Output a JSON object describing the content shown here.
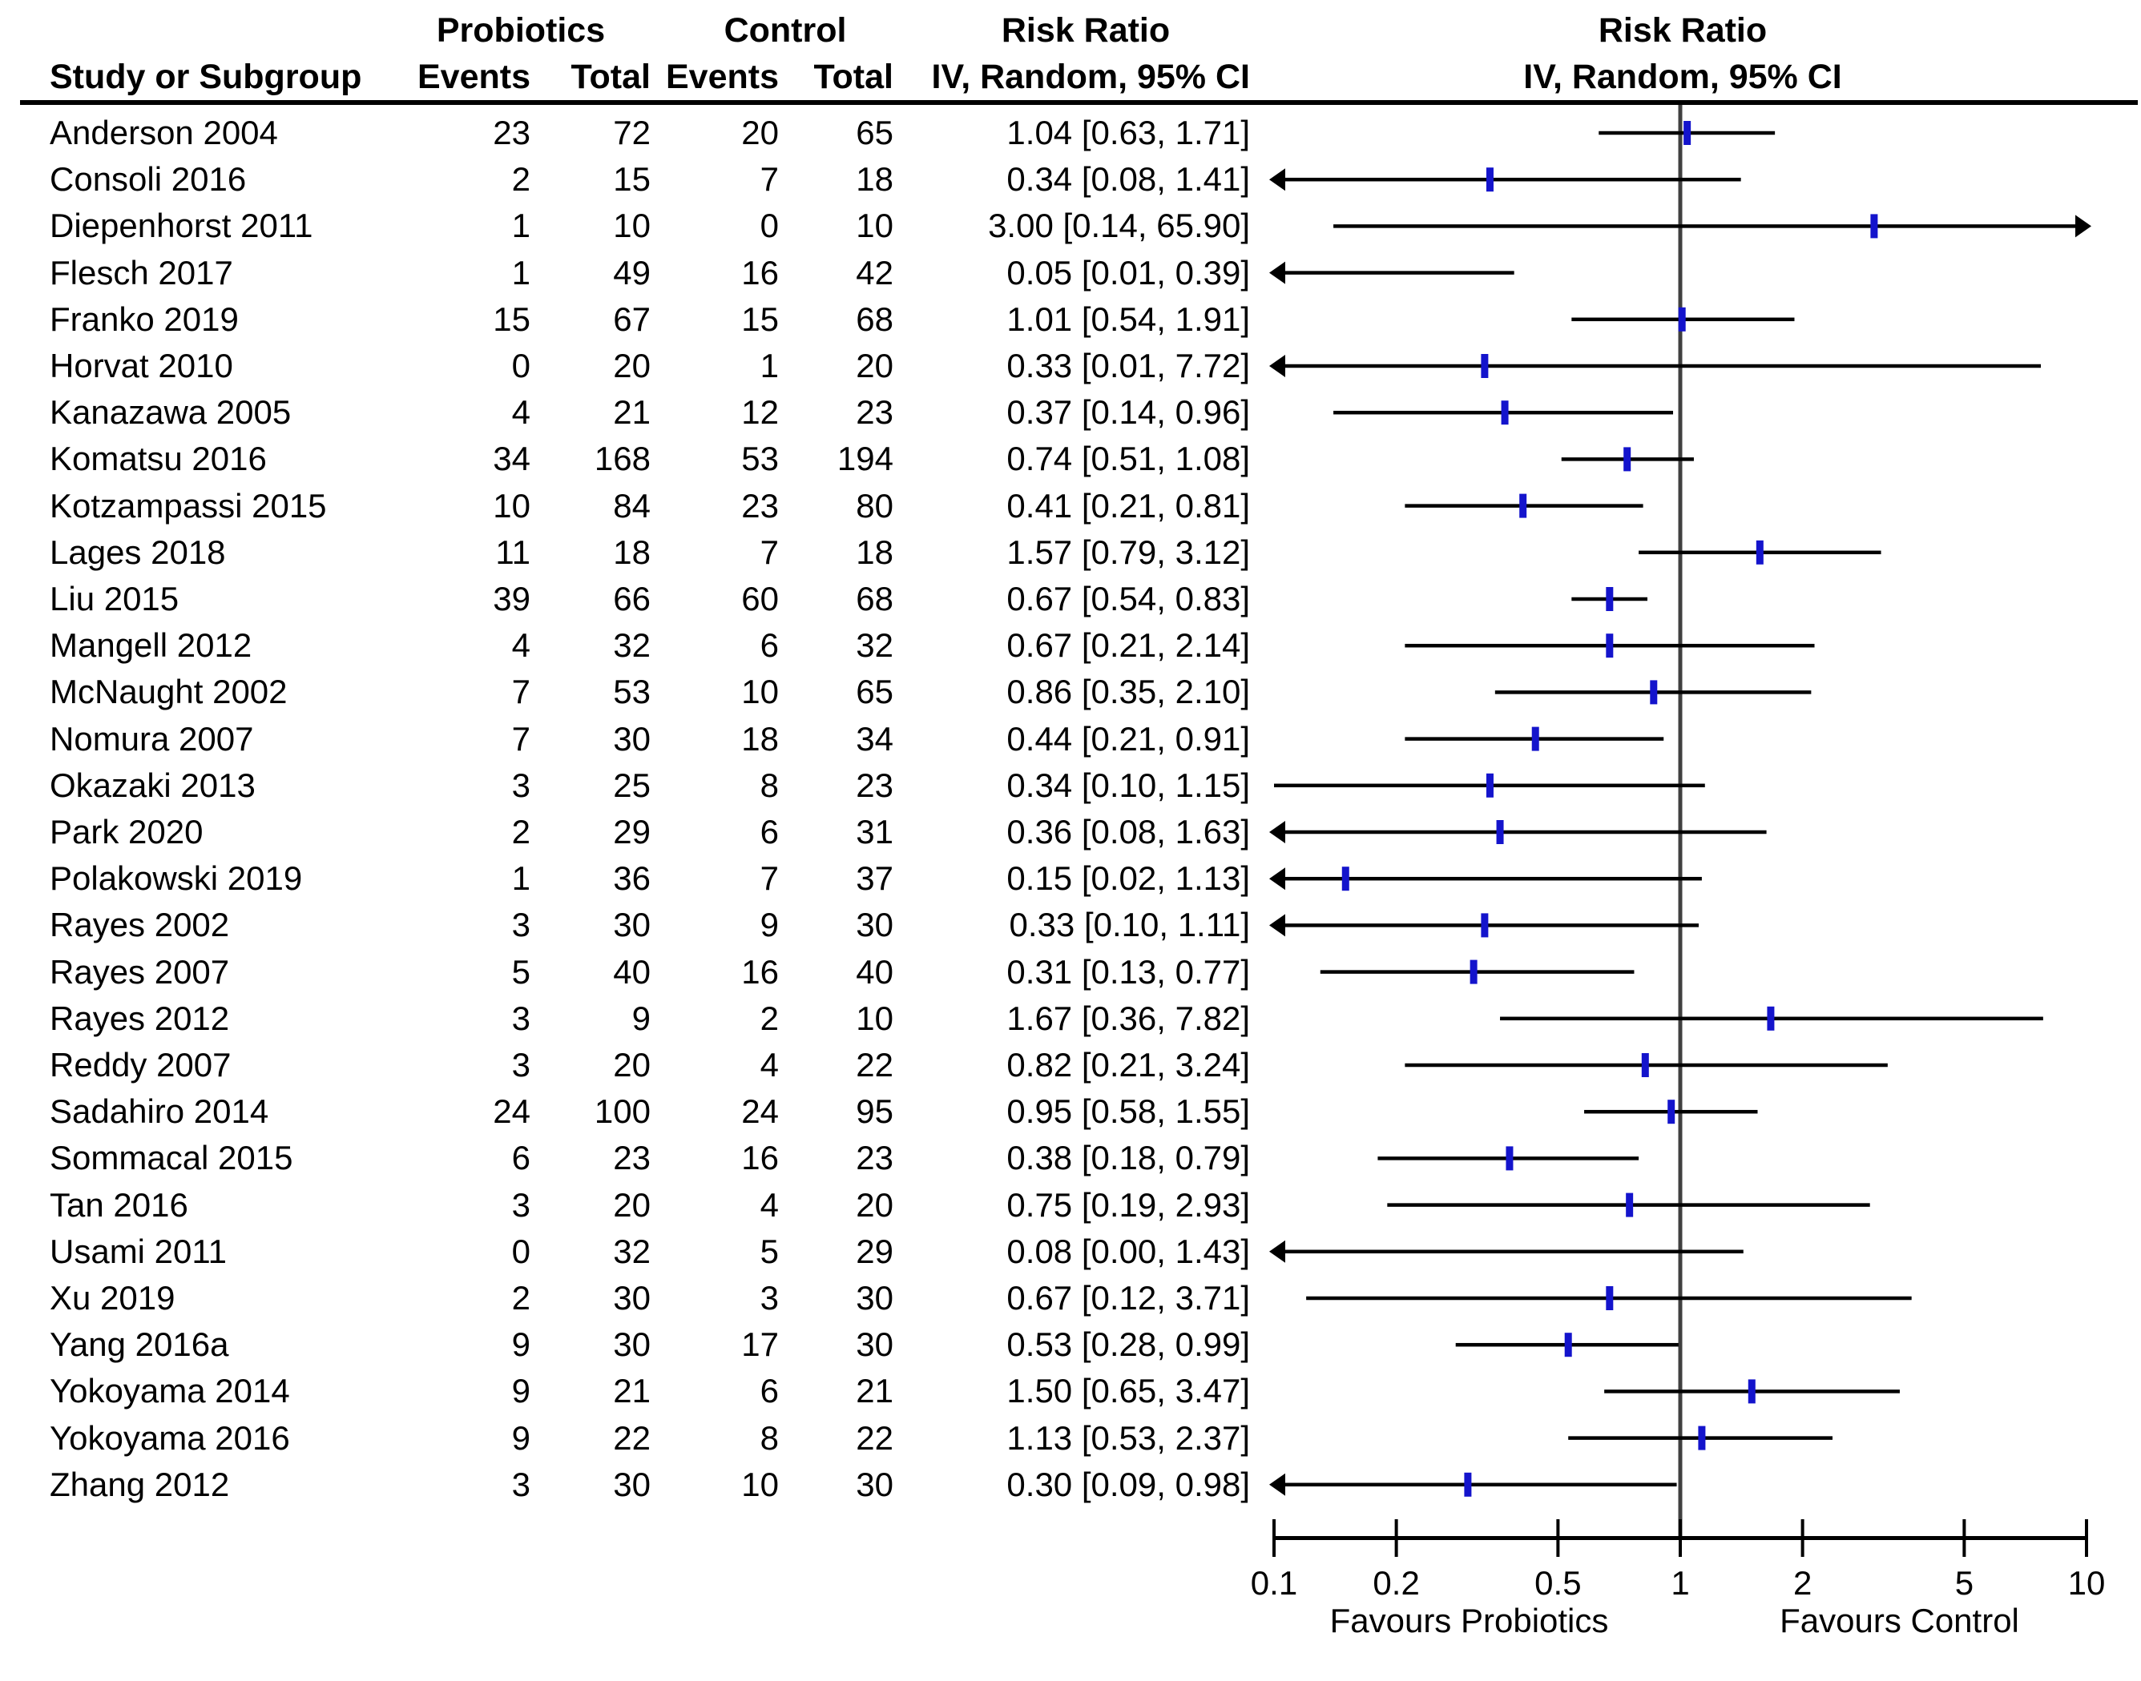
{
  "header": {
    "col_study": "Study or Subgroup",
    "col_group1": "Probiotics",
    "col_group2": "Control",
    "col_events1": "Events",
    "col_total1": "Total",
    "col_events2": "Events",
    "col_total2": "Total",
    "col_effect_title": "Risk Ratio",
    "col_effect_method": "IV, Random, 95% CI",
    "plot_title": "Risk Ratio",
    "plot_method": "IV, Random, 95% CI"
  },
  "axis": {
    "scale": "log10",
    "xlim": [
      0.1,
      10
    ],
    "tick_labels": [
      "0.1",
      "0.2",
      "0.5",
      "1",
      "2",
      "5",
      "10"
    ],
    "label_left": "Favours Probiotics",
    "label_right": "Favours Control"
  },
  "colors": {
    "marker": "#1414cc",
    "ci_line": "#000000",
    "axis_line": "#000000",
    "null_line": "#404040"
  },
  "chart_data": {
    "type": "forest",
    "effect_measure": "Risk Ratio",
    "model": "IV, Random, 95% CI",
    "null_value": 1,
    "studies": [
      {
        "name": "Anderson 2004",
        "events1": 23,
        "total1": 72,
        "events2": 20,
        "total2": 65,
        "rr": 1.04,
        "lo": 0.63,
        "hi": 1.71,
        "label": "1.04 [0.63, 1.71]",
        "arrow_left": false,
        "arrow_right": false
      },
      {
        "name": "Consoli 2016",
        "events1": 2,
        "total1": 15,
        "events2": 7,
        "total2": 18,
        "rr": 0.34,
        "lo": 0.08,
        "hi": 1.41,
        "label": "0.34 [0.08, 1.41]",
        "arrow_left": true,
        "arrow_right": false
      },
      {
        "name": "Diepenhorst 2011",
        "events1": 1,
        "total1": 10,
        "events2": 0,
        "total2": 10,
        "rr": 3.0,
        "lo": 0.14,
        "hi": 65.9,
        "label": "3.00 [0.14, 65.90]",
        "arrow_left": false,
        "arrow_right": true
      },
      {
        "name": "Flesch 2017",
        "events1": 1,
        "total1": 49,
        "events2": 16,
        "total2": 42,
        "rr": 0.05,
        "lo": 0.01,
        "hi": 0.39,
        "label": "0.05 [0.01, 0.39]",
        "arrow_left": true,
        "arrow_right": false
      },
      {
        "name": "Franko 2019",
        "events1": 15,
        "total1": 67,
        "events2": 15,
        "total2": 68,
        "rr": 1.01,
        "lo": 0.54,
        "hi": 1.91,
        "label": "1.01 [0.54, 1.91]",
        "arrow_left": false,
        "arrow_right": false
      },
      {
        "name": "Horvat 2010",
        "events1": 0,
        "total1": 20,
        "events2": 1,
        "total2": 20,
        "rr": 0.33,
        "lo": 0.01,
        "hi": 7.72,
        "label": "0.33 [0.01, 7.72]",
        "arrow_left": true,
        "arrow_right": false
      },
      {
        "name": "Kanazawa 2005",
        "events1": 4,
        "total1": 21,
        "events2": 12,
        "total2": 23,
        "rr": 0.37,
        "lo": 0.14,
        "hi": 0.96,
        "label": "0.37 [0.14, 0.96]",
        "arrow_left": false,
        "arrow_right": false
      },
      {
        "name": "Komatsu 2016",
        "events1": 34,
        "total1": 168,
        "events2": 53,
        "total2": 194,
        "rr": 0.74,
        "lo": 0.51,
        "hi": 1.08,
        "label": "0.74 [0.51, 1.08]",
        "arrow_left": false,
        "arrow_right": false
      },
      {
        "name": "Kotzampassi 2015",
        "events1": 10,
        "total1": 84,
        "events2": 23,
        "total2": 80,
        "rr": 0.41,
        "lo": 0.21,
        "hi": 0.81,
        "label": "0.41 [0.21, 0.81]",
        "arrow_left": false,
        "arrow_right": false
      },
      {
        "name": "Lages 2018",
        "events1": 11,
        "total1": 18,
        "events2": 7,
        "total2": 18,
        "rr": 1.57,
        "lo": 0.79,
        "hi": 3.12,
        "label": "1.57 [0.79, 3.12]",
        "arrow_left": false,
        "arrow_right": false
      },
      {
        "name": "Liu 2015",
        "events1": 39,
        "total1": 66,
        "events2": 60,
        "total2": 68,
        "rr": 0.67,
        "lo": 0.54,
        "hi": 0.83,
        "label": "0.67 [0.54, 0.83]",
        "arrow_left": false,
        "arrow_right": false
      },
      {
        "name": "Mangell 2012",
        "events1": 4,
        "total1": 32,
        "events2": 6,
        "total2": 32,
        "rr": 0.67,
        "lo": 0.21,
        "hi": 2.14,
        "label": "0.67 [0.21, 2.14]",
        "arrow_left": false,
        "arrow_right": false
      },
      {
        "name": "McNaught 2002",
        "events1": 7,
        "total1": 53,
        "events2": 10,
        "total2": 65,
        "rr": 0.86,
        "lo": 0.35,
        "hi": 2.1,
        "label": "0.86 [0.35, 2.10]",
        "arrow_left": false,
        "arrow_right": false
      },
      {
        "name": "Nomura 2007",
        "events1": 7,
        "total1": 30,
        "events2": 18,
        "total2": 34,
        "rr": 0.44,
        "lo": 0.21,
        "hi": 0.91,
        "label": "0.44 [0.21, 0.91]",
        "arrow_left": false,
        "arrow_right": false
      },
      {
        "name": "Okazaki 2013",
        "events1": 3,
        "total1": 25,
        "events2": 8,
        "total2": 23,
        "rr": 0.34,
        "lo": 0.1,
        "hi": 1.15,
        "label": "0.34 [0.10, 1.15]",
        "arrow_left": false,
        "arrow_right": false
      },
      {
        "name": "Park 2020",
        "events1": 2,
        "total1": 29,
        "events2": 6,
        "total2": 31,
        "rr": 0.36,
        "lo": 0.08,
        "hi": 1.63,
        "label": "0.36 [0.08, 1.63]",
        "arrow_left": true,
        "arrow_right": false
      },
      {
        "name": "Polakowski 2019",
        "events1": 1,
        "total1": 36,
        "events2": 7,
        "total2": 37,
        "rr": 0.15,
        "lo": 0.02,
        "hi": 1.13,
        "label": "0.15 [0.02, 1.13]",
        "arrow_left": true,
        "arrow_right": false
      },
      {
        "name": "Rayes 2002",
        "events1": 3,
        "total1": 30,
        "events2": 9,
        "total2": 30,
        "rr": 0.33,
        "lo": 0.1,
        "hi": 1.11,
        "label": "0.33 [0.10, 1.11]",
        "arrow_left": true,
        "arrow_right": false
      },
      {
        "name": "Rayes 2007",
        "events1": 5,
        "total1": 40,
        "events2": 16,
        "total2": 40,
        "rr": 0.31,
        "lo": 0.13,
        "hi": 0.77,
        "label": "0.31 [0.13, 0.77]",
        "arrow_left": false,
        "arrow_right": false
      },
      {
        "name": "Rayes 2012",
        "events1": 3,
        "total1": 9,
        "events2": 2,
        "total2": 10,
        "rr": 1.67,
        "lo": 0.36,
        "hi": 7.82,
        "label": "1.67 [0.36, 7.82]",
        "arrow_left": false,
        "arrow_right": false
      },
      {
        "name": "Reddy 2007",
        "events1": 3,
        "total1": 20,
        "events2": 4,
        "total2": 22,
        "rr": 0.82,
        "lo": 0.21,
        "hi": 3.24,
        "label": "0.82 [0.21, 3.24]",
        "arrow_left": false,
        "arrow_right": false
      },
      {
        "name": "Sadahiro 2014",
        "events1": 24,
        "total1": 100,
        "events2": 24,
        "total2": 95,
        "rr": 0.95,
        "lo": 0.58,
        "hi": 1.55,
        "label": "0.95 [0.58, 1.55]",
        "arrow_left": false,
        "arrow_right": false
      },
      {
        "name": "Sommacal 2015",
        "events1": 6,
        "total1": 23,
        "events2": 16,
        "total2": 23,
        "rr": 0.38,
        "lo": 0.18,
        "hi": 0.79,
        "label": "0.38 [0.18, 0.79]",
        "arrow_left": false,
        "arrow_right": false
      },
      {
        "name": "Tan 2016",
        "events1": 3,
        "total1": 20,
        "events2": 4,
        "total2": 20,
        "rr": 0.75,
        "lo": 0.19,
        "hi": 2.93,
        "label": "0.75 [0.19, 2.93]",
        "arrow_left": false,
        "arrow_right": false
      },
      {
        "name": "Usami 2011",
        "events1": 0,
        "total1": 32,
        "events2": 5,
        "total2": 29,
        "rr": 0.08,
        "lo": 0.0,
        "hi": 1.43,
        "label": "0.08 [0.00, 1.43]",
        "arrow_left": true,
        "arrow_right": false
      },
      {
        "name": "Xu 2019",
        "events1": 2,
        "total1": 30,
        "events2": 3,
        "total2": 30,
        "rr": 0.67,
        "lo": 0.12,
        "hi": 3.71,
        "label": "0.67 [0.12, 3.71]",
        "arrow_left": false,
        "arrow_right": false
      },
      {
        "name": "Yang 2016a",
        "events1": 9,
        "total1": 30,
        "events2": 17,
        "total2": 30,
        "rr": 0.53,
        "lo": 0.28,
        "hi": 0.99,
        "label": "0.53 [0.28, 0.99]",
        "arrow_left": false,
        "arrow_right": false
      },
      {
        "name": "Yokoyama 2014",
        "events1": 9,
        "total1": 21,
        "events2": 6,
        "total2": 21,
        "rr": 1.5,
        "lo": 0.65,
        "hi": 3.47,
        "label": "1.50 [0.65, 3.47]",
        "arrow_left": false,
        "arrow_right": false
      },
      {
        "name": "Yokoyama 2016",
        "events1": 9,
        "total1": 22,
        "events2": 8,
        "total2": 22,
        "rr": 1.13,
        "lo": 0.53,
        "hi": 2.37,
        "label": "1.13 [0.53, 2.37]",
        "arrow_left": false,
        "arrow_right": false
      },
      {
        "name": "Zhang 2012",
        "events1": 3,
        "total1": 30,
        "events2": 10,
        "total2": 30,
        "rr": 0.3,
        "lo": 0.09,
        "hi": 0.98,
        "label": "0.30 [0.09, 0.98]",
        "arrow_left": true,
        "arrow_right": false
      }
    ]
  }
}
